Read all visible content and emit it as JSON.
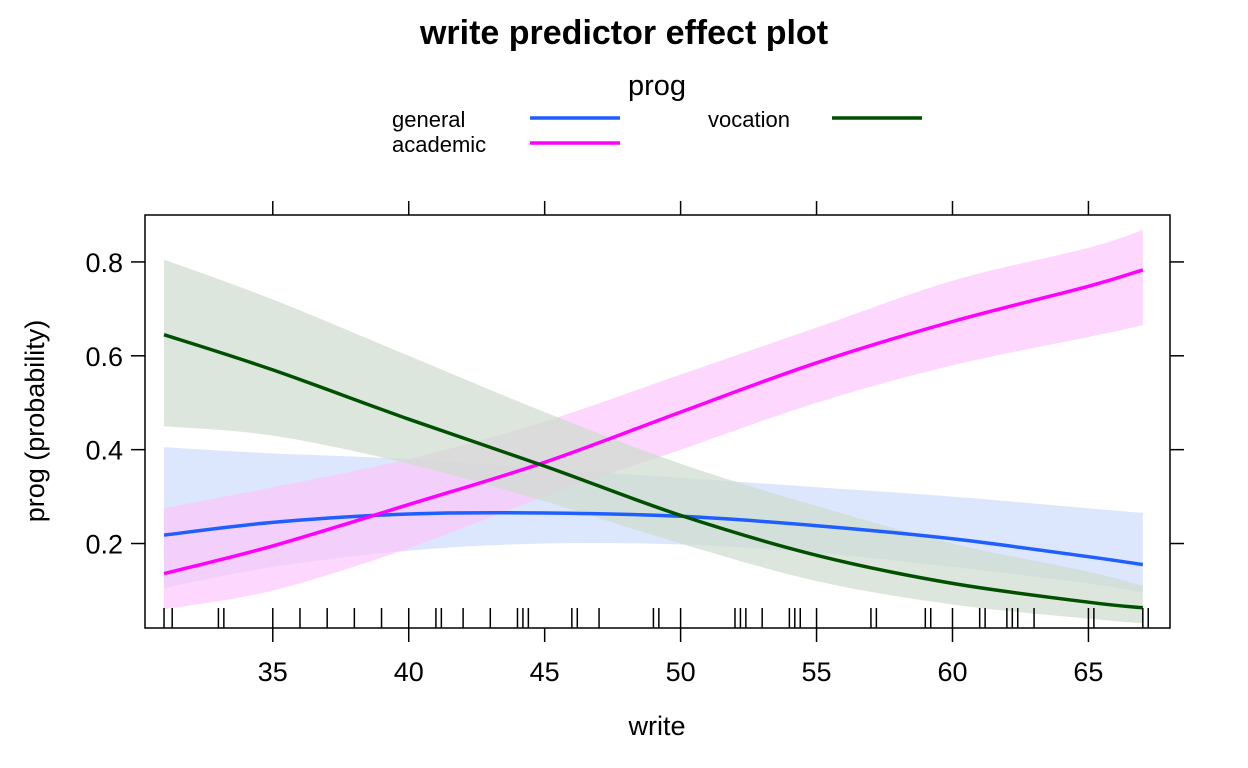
{
  "chart_data": {
    "type": "line",
    "title": "write predictor effect plot",
    "xlabel": "write",
    "ylabel": "prog (probability)",
    "xlim": [
      30.3,
      68.0
    ],
    "ylim": [
      0.02,
      0.9
    ],
    "x_ticks": [
      35,
      40,
      45,
      50,
      55,
      60,
      65
    ],
    "y_ticks": [
      0.2,
      0.4,
      0.6,
      0.8
    ],
    "grid": false,
    "legend": {
      "title": "prog",
      "placement": "top",
      "entries": [
        "general",
        "academic",
        "vocation"
      ]
    },
    "x": [
      31,
      35,
      40,
      45,
      50,
      55,
      60,
      65,
      67
    ],
    "series": [
      {
        "name": "general",
        "color": "#1f5fff",
        "band_color": "#cfdcfb",
        "values": [
          0.218,
          0.245,
          0.263,
          0.265,
          0.258,
          0.238,
          0.21,
          0.172,
          0.155
        ],
        "lower": [
          0.105,
          0.15,
          0.185,
          0.2,
          0.198,
          0.18,
          0.15,
          0.115,
          0.095
        ],
        "upper": [
          0.405,
          0.392,
          0.38,
          0.36,
          0.34,
          0.32,
          0.3,
          0.275,
          0.265
        ]
      },
      {
        "name": "academic",
        "color": "#ff00ff",
        "band_color": "#fcc8fc",
        "values": [
          0.136,
          0.195,
          0.283,
          0.373,
          0.48,
          0.585,
          0.673,
          0.748,
          0.783
        ],
        "lower": [
          0.06,
          0.1,
          0.19,
          0.3,
          0.4,
          0.5,
          0.58,
          0.64,
          0.665
        ],
        "upper": [
          0.275,
          0.32,
          0.38,
          0.46,
          0.56,
          0.66,
          0.76,
          0.83,
          0.868
        ]
      },
      {
        "name": "vocation",
        "color": "#005000",
        "band_color": "#cedccf",
        "values": [
          0.645,
          0.57,
          0.465,
          0.365,
          0.26,
          0.175,
          0.115,
          0.075,
          0.063
        ],
        "lower": [
          0.45,
          0.43,
          0.37,
          0.29,
          0.2,
          0.12,
          0.07,
          0.04,
          0.03
        ],
        "upper": [
          0.805,
          0.72,
          0.6,
          0.48,
          0.37,
          0.28,
          0.2,
          0.14,
          0.11
        ]
      }
    ],
    "rug": [
      31,
      31.3,
      33,
      33.2,
      35,
      36,
      37,
      38,
      39,
      40,
      41,
      41.2,
      42,
      43,
      44,
      44.2,
      44.4,
      46,
      46.2,
      47,
      49,
      49.2,
      50,
      52,
      52.2,
      52.4,
      53,
      54,
      54.2,
      54.4,
      55,
      57,
      57.2,
      59,
      59.2,
      60,
      61,
      61.2,
      62,
      62.2,
      62.4,
      63,
      65,
      65.2,
      67,
      67.2
    ]
  }
}
